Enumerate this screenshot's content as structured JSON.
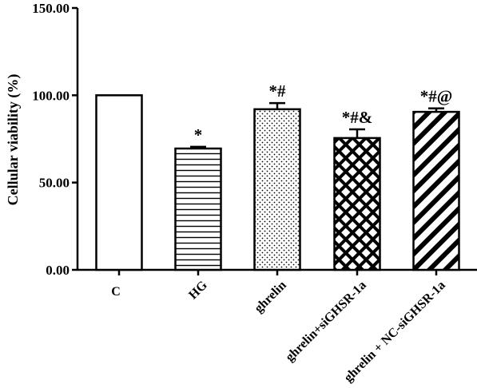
{
  "chart_data": {
    "type": "bar",
    "title": "",
    "xlabel": "",
    "ylabel": "Cellular viability (%)",
    "ylim": [
      0,
      150
    ],
    "yticks": [
      {
        "value": 0,
        "label": "0.00"
      },
      {
        "value": 50,
        "label": "50.00"
      },
      {
        "value": 100,
        "label": "100.00"
      },
      {
        "value": 150,
        "label": "150.00"
      }
    ],
    "categories": [
      "C",
      "HG",
      "ghrelin",
      "ghrelin+siGHSR-1a",
      "ghrelin + NC-siGHSR-1a"
    ],
    "values": [
      100,
      69.5,
      92,
      75.5,
      90.5
    ],
    "errors": [
      0,
      1,
      3.5,
      5,
      2
    ],
    "significance": [
      "",
      "*",
      "*#",
      "*#&",
      "*#@"
    ],
    "patterns": [
      "none",
      "horizontal-lines",
      "dots",
      "crosshatch",
      "diagonal-stripes"
    ],
    "grid": false
  }
}
